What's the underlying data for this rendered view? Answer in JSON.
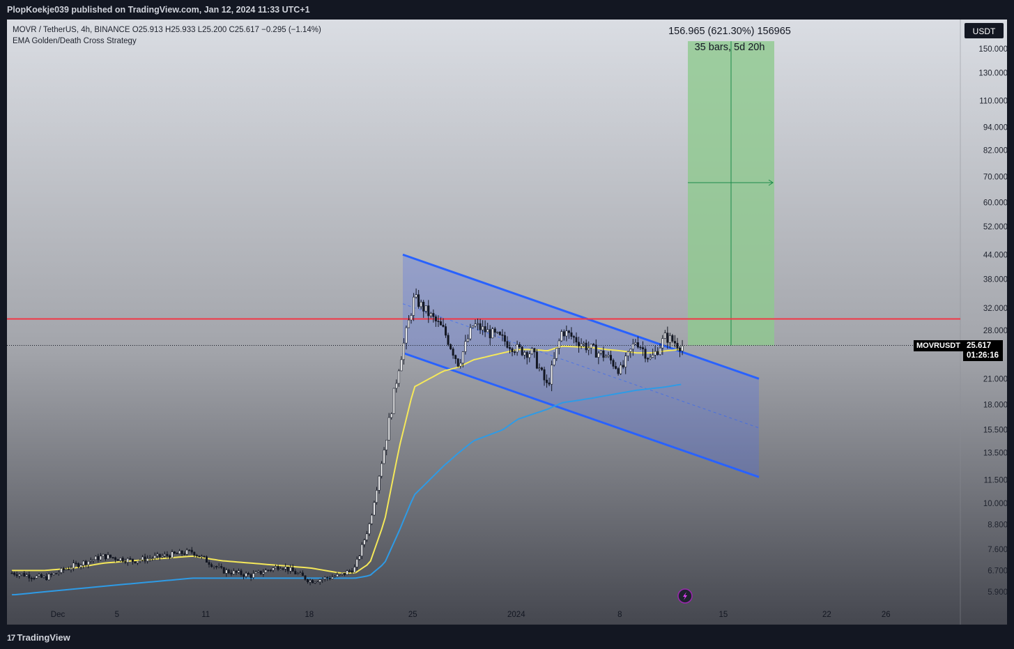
{
  "header": {
    "published": "PlopKoekje039 published on TradingView.com, Jan 12, 2024 11:33 UTC+1"
  },
  "legend": {
    "symbol_line": "MOVR / TetherUS, 4h, BINANCE  O25.913  H25.933  L25.200  C25.617  −0.295 (−1.14%)",
    "strategy": "EMA Golden/Death Cross Strategy"
  },
  "measure": {
    "line1": "156.965 (621.30%) 156965",
    "line2": "35 bars, 5d 20h"
  },
  "currency_button": "USDT",
  "ticker_label": "MOVRUSDT",
  "last_price": "25.617",
  "countdown": "01:26:16",
  "footer": {
    "brand": "TradingView"
  },
  "colors": {
    "horizontal_line": "#f23645",
    "channel_line": "#2962ff",
    "ema_fast": "#f5e85a",
    "ema_slow": "#2e9be6",
    "target_zone": "#8ec98e"
  },
  "chart_data": {
    "type": "candlestick",
    "scale": "log",
    "x_tick_labels": [
      "Dec",
      "5",
      "11",
      "18",
      "25",
      "2024",
      "8",
      "15",
      "22",
      "26"
    ],
    "y_tick_labels": [
      "150.000",
      "130.000",
      "110.000",
      "94.000",
      "82.000",
      "70.000",
      "60.000",
      "52.000",
      "44.000",
      "38.000",
      "32.000",
      "28.000",
      "21.000",
      "18.000",
      "15.500",
      "13.500",
      "11.500",
      "10.000",
      "8.800",
      "7.600",
      "6.700",
      "5.900"
    ],
    "y_ticks": [
      150,
      130,
      110,
      94,
      82,
      70,
      60,
      52,
      44,
      38,
      32,
      28,
      21,
      18,
      15.5,
      13.5,
      11.5,
      10,
      8.8,
      7.6,
      6.7,
      5.9
    ],
    "horizontal_level": 30.0,
    "last_close": 25.617,
    "target_price": 156.965,
    "target_change_pct": 621.3,
    "series": [
      {
        "name": "close",
        "x": [
          "Nov 28",
          "Nov 30",
          "Dec 2",
          "Dec 4",
          "Dec 6",
          "Dec 8",
          "Dec 10",
          "Dec 12",
          "Dec 14",
          "Dec 16",
          "Dec 18",
          "Dec 20",
          "Dec 21",
          "Dec 22",
          "Dec 23",
          "Dec 24",
          "Dec 25",
          "Dec 27",
          "Dec 28",
          "Dec 29",
          "Dec 31",
          "Jan 1",
          "Jan 2",
          "Jan 3",
          "Jan 4",
          "Jan 6",
          "Jan 7",
          "Jan 8",
          "Jan 9",
          "Jan 10",
          "Jan 11",
          "Jan 12"
        ],
        "values": [
          6.6,
          6.4,
          6.9,
          7.3,
          7.1,
          7.3,
          7.5,
          6.7,
          6.5,
          6.9,
          6.3,
          6.5,
          6.8,
          8.9,
          14.0,
          23.0,
          34.0,
          28.0,
          23.0,
          29.0,
          26.5,
          25.0,
          24.5,
          20.0,
          28.0,
          25.0,
          24.0,
          22.0,
          26.5,
          23.5,
          27.0,
          25.6
        ]
      },
      {
        "name": "EMA fast",
        "values": [
          6.7,
          6.7,
          6.8,
          7.0,
          7.1,
          7.2,
          7.3,
          7.1,
          7.0,
          6.9,
          6.8,
          6.6,
          6.6,
          7.0,
          9.0,
          14.0,
          20.0,
          22.0,
          22.5,
          23.5,
          24.5,
          25.0,
          25.0,
          24.8,
          25.5,
          25.3,
          25.0,
          24.8,
          24.5,
          24.5,
          24.8,
          25.0
        ]
      },
      {
        "name": "EMA slow",
        "values": [
          5.8,
          5.9,
          6.0,
          6.1,
          6.2,
          6.3,
          6.4,
          6.4,
          6.4,
          6.4,
          6.4,
          6.4,
          6.4,
          6.5,
          7.0,
          8.5,
          10.5,
          12.5,
          13.5,
          14.5,
          15.5,
          16.5,
          17.0,
          17.5,
          18.2,
          18.7,
          19.0,
          19.3,
          19.6,
          19.8,
          20.0,
          20.3
        ]
      }
    ]
  }
}
